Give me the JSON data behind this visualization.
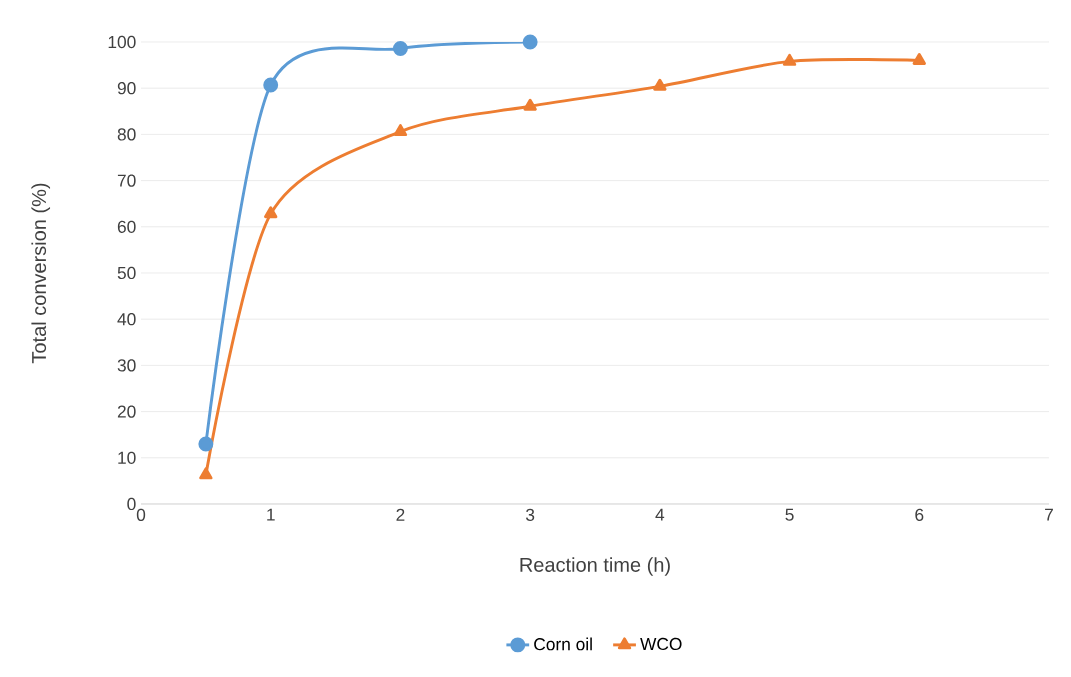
{
  "chart_data": {
    "type": "line",
    "xlabel": "Reaction time (h)",
    "ylabel": "Total conversion (%)",
    "xlim": [
      0,
      7
    ],
    "xticks": [
      0,
      1,
      2,
      3,
      4,
      5,
      6,
      7
    ],
    "ylim": [
      0,
      100
    ],
    "yticks": [
      0,
      10,
      20,
      30,
      40,
      50,
      60,
      70,
      80,
      90,
      100
    ],
    "grid": "y",
    "legend": "bottom",
    "line_style": "solid",
    "series": [
      {
        "name": "Corn oil",
        "color": "#5b9bd5",
        "marker": "circle",
        "x": [
          0.5,
          1,
          2,
          3
        ],
        "values": [
          13,
          90.7,
          98.6,
          100
        ]
      },
      {
        "name": "WCO",
        "color": "#ed7d31",
        "marker": "triangle",
        "x": [
          0.5,
          1,
          2,
          3,
          4,
          5,
          6
        ],
        "values": [
          6.3,
          62.8,
          80.6,
          86.1,
          90.4,
          95.8,
          96
        ]
      }
    ]
  }
}
